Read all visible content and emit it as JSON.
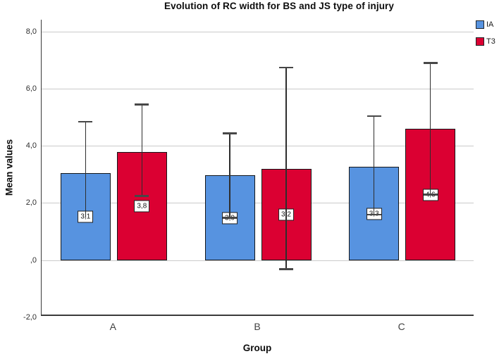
{
  "chart_data": {
    "type": "bar",
    "title": "Evolution of RC width for BS and JS type of injury",
    "xlabel": "Group",
    "ylabel": "Mean values",
    "categories": [
      "A",
      "B",
      "C"
    ],
    "series": [
      {
        "name": "IA",
        "color": "#5793E0",
        "values": [
          3.05,
          2.97,
          3.27
        ],
        "value_labels": [
          "3,1",
          "3,0",
          "3,3"
        ],
        "err_low": [
          1.5,
          1.5,
          1.6
        ],
        "err_high": [
          4.85,
          4.45,
          5.05
        ],
        "cap_over_label": [
          false,
          true,
          true
        ]
      },
      {
        "name": "T3",
        "color": "#DB0032",
        "values": [
          3.8,
          3.2,
          4.6
        ],
        "value_labels": [
          "3,8",
          "3,2",
          "4,6"
        ],
        "err_low": [
          2.25,
          -0.3,
          2.3
        ],
        "err_high": [
          5.45,
          6.75,
          6.9
        ],
        "cap_over_label": [
          true,
          true,
          true
        ]
      }
    ],
    "y_ticks": [
      {
        "label": "8,0",
        "value": 8
      },
      {
        "label": "6,0",
        "value": 6
      },
      {
        "label": "4,0",
        "value": 4
      },
      {
        "label": "2,0",
        "value": 2
      },
      {
        "label": ",0",
        "value": 0
      },
      {
        "label": "-2,0",
        "value": -2
      }
    ],
    "ylim": [
      -1.94,
      8.42
    ],
    "grid": true,
    "legend_position": "top-right",
    "style": {
      "grid_color": "#cbcbcb",
      "axis_color": "#3a3a3a",
      "error_bar_color": "#2e2e2e",
      "bar_border_color": "#14171a",
      "label_box_bg": "#ffffff",
      "label_box_border": "#1d1d1d"
    }
  }
}
